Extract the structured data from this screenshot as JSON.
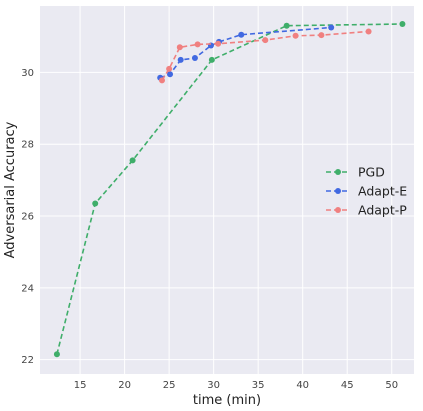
{
  "chart_data": {
    "type": "line",
    "xlabel": "time (min)",
    "ylabel": "Adversarial Accuracy",
    "xlim": [
      10.5,
      52.5
    ],
    "ylim": [
      21.6,
      31.85
    ],
    "xticks": [
      15,
      20,
      25,
      30,
      35,
      40,
      45,
      50
    ],
    "yticks": [
      22,
      24,
      26,
      28,
      30
    ],
    "grid": true,
    "legend_position": "right",
    "series": [
      {
        "name": "PGD",
        "color": "#3fae6a",
        "points": [
          [
            12.4,
            22.15
          ],
          [
            16.7,
            26.35
          ],
          [
            20.9,
            27.55
          ],
          [
            29.8,
            30.35
          ],
          [
            38.2,
            31.3
          ],
          [
            51.2,
            31.35
          ]
        ]
      },
      {
        "name": "Adapt-E",
        "color": "#4169e1",
        "points": [
          [
            24.0,
            29.85
          ],
          [
            25.1,
            29.95
          ],
          [
            26.3,
            30.35
          ],
          [
            27.9,
            30.4
          ],
          [
            29.7,
            30.75
          ],
          [
            30.6,
            30.85
          ],
          [
            33.1,
            31.05
          ],
          [
            43.2,
            31.25
          ]
        ]
      },
      {
        "name": "Adapt-P",
        "color": "#f08080",
        "points": [
          [
            24.2,
            29.78
          ],
          [
            25.0,
            30.1
          ],
          [
            26.2,
            30.7
          ],
          [
            28.2,
            30.78
          ],
          [
            30.5,
            30.8
          ],
          [
            35.8,
            30.9
          ],
          [
            39.2,
            31.02
          ],
          [
            42.1,
            31.04
          ],
          [
            47.4,
            31.14
          ]
        ]
      }
    ]
  }
}
